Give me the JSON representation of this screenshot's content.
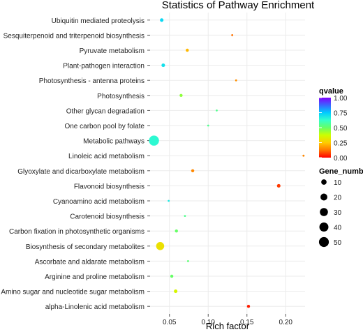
{
  "chart_data": {
    "type": "scatter",
    "title": "Statistics of Pathway Enrichment",
    "xlabel": "Rich factor",
    "ylabel": "",
    "xlim": [
      0.025,
      0.225
    ],
    "x_ticks": [
      "0.05",
      "0.10",
      "0.15",
      "0.20"
    ],
    "x_tick_values": [
      0.05,
      0.1,
      0.15,
      0.2
    ],
    "grid": true,
    "legend_position": "right",
    "categories": [
      "Ubiquitin mediated proteolysis",
      "Sesquiterpenoid and triterpenoid biosynthesis",
      "Pyruvate metabolism",
      "Plant-pathogen interaction",
      "Photosynthesis - antenna proteins",
      "Photosynthesis",
      "Other glycan degradation",
      "One carbon pool by folate",
      "Metabolic pathways",
      "Linoleic acid metabolism",
      "Glyoxylate and dicarboxylate metabolism",
      "Flavonoid biosynthesis",
      "Cyanoamino acid metabolism",
      "Carotenoid biosynthesis",
      "Carbon fixation in photosynthetic organisms",
      "Biosynthesis of secondary metabolites",
      "Ascorbate and aldarate metabolism",
      "Arginine and proline metabolism",
      "Amino sugar and nucleotide sugar metabolism",
      "alpha-Linolenic acid metabolism"
    ],
    "points": [
      {
        "x": 0.04,
        "qvalue": 0.72,
        "genes": 3
      },
      {
        "x": 0.131,
        "qvalue": 0.12,
        "genes": 1
      },
      {
        "x": 0.073,
        "qvalue": 0.22,
        "genes": 2
      },
      {
        "x": 0.042,
        "qvalue": 0.7,
        "genes": 3
      },
      {
        "x": 0.136,
        "qvalue": 0.16,
        "genes": 1
      },
      {
        "x": 0.065,
        "qvalue": 0.45,
        "genes": 2
      },
      {
        "x": 0.111,
        "qvalue": 0.55,
        "genes": 1
      },
      {
        "x": 0.1,
        "qvalue": 0.55,
        "genes": 1
      },
      {
        "x": 0.03,
        "qvalue": 0.64,
        "genes": 52
      },
      {
        "x": 0.223,
        "qvalue": 0.15,
        "genes": 1
      },
      {
        "x": 0.08,
        "qvalue": 0.15,
        "genes": 2
      },
      {
        "x": 0.191,
        "qvalue": 0.06,
        "genes": 3
      },
      {
        "x": 0.049,
        "qvalue": 0.68,
        "genes": 1
      },
      {
        "x": 0.07,
        "qvalue": 0.55,
        "genes": 1
      },
      {
        "x": 0.059,
        "qvalue": 0.5,
        "genes": 2
      },
      {
        "x": 0.038,
        "qvalue": 0.3,
        "genes": 30
      },
      {
        "x": 0.074,
        "qvalue": 0.52,
        "genes": 1
      },
      {
        "x": 0.053,
        "qvalue": 0.5,
        "genes": 2
      },
      {
        "x": 0.058,
        "qvalue": 0.35,
        "genes": 3
      },
      {
        "x": 0.152,
        "qvalue": 0.03,
        "genes": 2
      }
    ],
    "color_legend": {
      "title": "qvalue",
      "ticks": [
        "1.00",
        "0.75",
        "0.50",
        "0.25",
        "0.00"
      ],
      "tick_values": [
        1.0,
        0.75,
        0.5,
        0.25,
        0.0
      ],
      "colors": [
        "#7f00ff",
        "#3a66ff",
        "#00ccff",
        "#33ffcc",
        "#66ff66",
        "#ccff00",
        "#ffcc00",
        "#ff7700",
        "#ff0000"
      ]
    },
    "size_legend": {
      "title": "Gene_number",
      "values": [
        10,
        20,
        30,
        40,
        50
      ],
      "labels": [
        "10",
        "20",
        "30",
        "40",
        "50"
      ]
    }
  }
}
